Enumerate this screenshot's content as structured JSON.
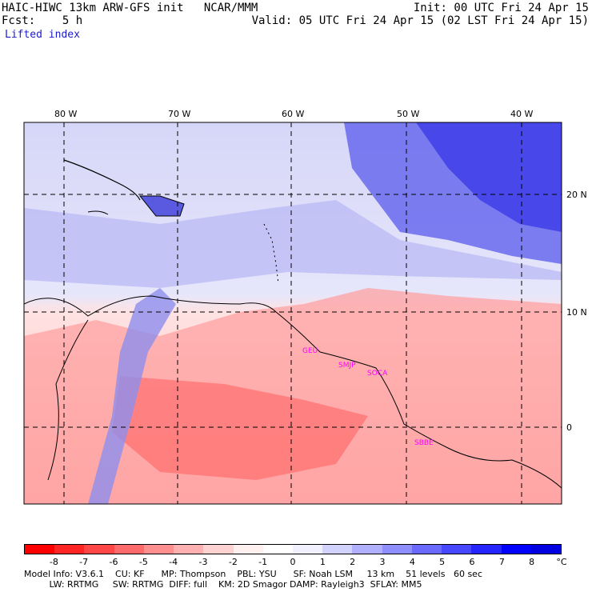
{
  "header": {
    "line1_left": "HAIC-HIWC 13km ARW-GFS init   NCAR/MMM",
    "line1_right": "Init: 00 UTC Fri 24 Apr 15",
    "line2_left": "Fcst:    5 h",
    "line2_right": "Valid: 05 UTC Fri 24 Apr 15 (02 LST Fri 24 Apr 15)",
    "field": "Lifted index"
  },
  "map": {
    "lon_labels": [
      "80 W",
      "70 W",
      "60 W",
      "50 W",
      "40 W"
    ],
    "lat_labels": [
      "20 N",
      "10 N",
      "0"
    ],
    "stations": [
      "GEU",
      "SMJP",
      "SOCA",
      "SBBE"
    ]
  },
  "colorbar": {
    "labels": [
      "-8",
      "-7",
      "-6",
      "-5",
      "-4",
      "-3",
      "-2",
      "-1",
      "0",
      "1",
      "2",
      "3",
      "4",
      "5",
      "6",
      "7",
      "8",
      "°C"
    ],
    "colors": [
      "#ff0000",
      "#ff2525",
      "#ff4747",
      "#ff6a6a",
      "#ff8e8e",
      "#ffb0b0",
      "#ffd2d2",
      "#fff0f0",
      "#ffffff",
      "#f0f0ff",
      "#d2d2ff",
      "#b0b0ff",
      "#8e8eff",
      "#6a6aff",
      "#4747ff",
      "#2525ff",
      "#0000ff",
      "#0000e0"
    ]
  },
  "footer": {
    "line1": "Model Info: V3.6.1    CU: KF      MP: Thompson    PBL: YSU      SF: Noah LSM     13 km    51 levels   60 sec",
    "line2": "         LW: RRTMG     SW: RRTMG  DIFF: full    KM: 2D Smagor DAMP: Rayleigh3  SFLAY: MM5"
  }
}
